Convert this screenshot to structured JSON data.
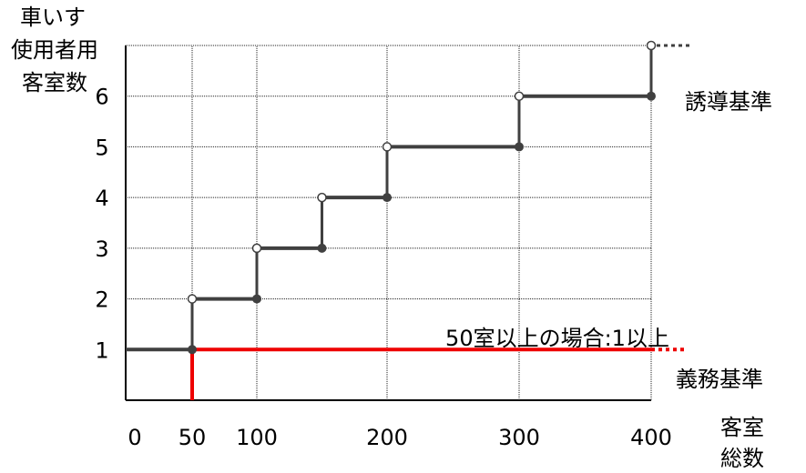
{
  "chart_data": {
    "type": "line",
    "ylabel_lines": [
      "車いす",
      "使用者用",
      "客室数"
    ],
    "xlabel_lines": [
      "客室",
      "総数"
    ],
    "x_ticks": [
      {
        "value": 0,
        "label": "0"
      },
      {
        "value": 50,
        "label": "50"
      },
      {
        "value": 100,
        "label": "100"
      },
      {
        "value": 200,
        "label": "200"
      },
      {
        "value": 300,
        "label": "300"
      },
      {
        "value": 400,
        "label": "400"
      }
    ],
    "y_ticks": [
      {
        "value": 1,
        "label": "1"
      },
      {
        "value": 2,
        "label": "2"
      },
      {
        "value": 3,
        "label": "3"
      },
      {
        "value": 4,
        "label": "4"
      },
      {
        "value": 5,
        "label": "5"
      },
      {
        "value": 6,
        "label": "6"
      }
    ],
    "xlim": [
      0,
      400
    ],
    "ylim": [
      0,
      7
    ],
    "grid": true,
    "series": [
      {
        "name": "誘導基準",
        "color": "#404040",
        "continues_beyond_max": true,
        "steps": [
          {
            "x_start": 0,
            "x_end": 50,
            "y": 1
          },
          {
            "x_start": 50,
            "x_end": 100,
            "y": 2
          },
          {
            "x_start": 100,
            "x_end": 150,
            "y": 3
          },
          {
            "x_start": 150,
            "x_end": 200,
            "y": 4
          },
          {
            "x_start": 200,
            "x_end": 300,
            "y": 5
          },
          {
            "x_start": 300,
            "x_end": 400,
            "y": 6
          },
          {
            "x_start": 400,
            "x_end": 400,
            "y": 7
          }
        ]
      },
      {
        "name": "義務基準",
        "color": "#ee0000",
        "continues_beyond_max": true,
        "steps": [
          {
            "x_start": 50,
            "x_end": 400,
            "y": 1
          }
        ]
      }
    ],
    "annotations": [
      {
        "text": "50室以上の場合:1以上"
      }
    ]
  }
}
